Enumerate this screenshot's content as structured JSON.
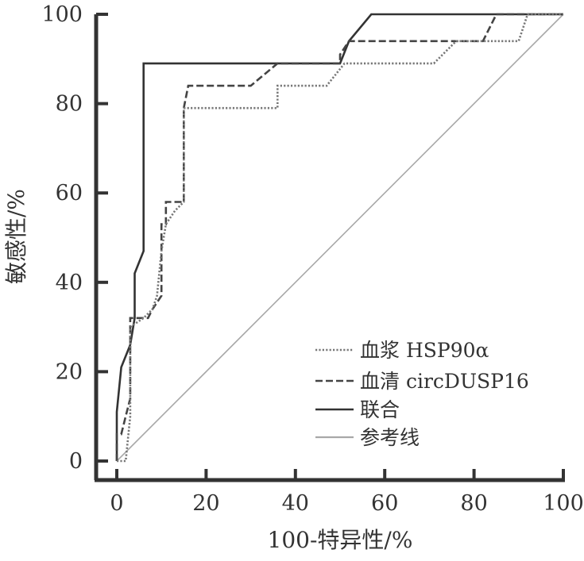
{
  "chart_data": {
    "type": "line",
    "title": "",
    "xlabel": "100-特异性/%",
    "ylabel": "敏感性/%",
    "xlim": [
      0,
      100
    ],
    "ylim": [
      0,
      100
    ],
    "x_ticks": [
      "0",
      "20",
      "40",
      "60",
      "80",
      "100"
    ],
    "y_ticks": [
      "0",
      "20",
      "40",
      "60",
      "80",
      "100"
    ],
    "grid": false,
    "legend_position": "lower-right",
    "series": [
      {
        "name": "血浆 HSP90α",
        "style": "dotted",
        "color": "#777777",
        "points": [
          [
            0,
            0
          ],
          [
            1,
            0
          ],
          [
            2,
            0
          ],
          [
            3,
            10
          ],
          [
            3,
            30
          ],
          [
            6,
            32
          ],
          [
            8,
            34
          ],
          [
            9,
            37
          ],
          [
            10,
            47
          ],
          [
            11,
            53
          ],
          [
            13,
            56
          ],
          [
            15,
            58
          ],
          [
            15,
            79
          ],
          [
            36,
            79
          ],
          [
            36,
            84
          ],
          [
            47,
            84
          ],
          [
            51,
            89
          ],
          [
            71,
            89
          ],
          [
            76,
            94
          ],
          [
            90,
            94
          ],
          [
            92,
            100
          ],
          [
            100,
            100
          ]
        ]
      },
      {
        "name": "血清 circDUSP16",
        "style": "dashed",
        "color": "#444444",
        "points": [
          [
            0,
            0
          ],
          [
            0,
            6
          ],
          [
            1,
            6
          ],
          [
            2,
            10
          ],
          [
            3,
            14
          ],
          [
            3,
            32
          ],
          [
            5,
            32
          ],
          [
            7,
            32
          ],
          [
            8,
            34
          ],
          [
            10,
            37
          ],
          [
            10,
            53
          ],
          [
            11,
            53
          ],
          [
            11,
            58
          ],
          [
            15,
            58
          ],
          [
            15,
            79
          ],
          [
            16,
            84
          ],
          [
            30,
            84
          ],
          [
            36,
            89
          ],
          [
            50,
            89
          ],
          [
            50,
            91
          ],
          [
            52,
            94
          ],
          [
            82,
            94
          ],
          [
            85,
            100
          ],
          [
            100,
            100
          ]
        ]
      },
      {
        "name": "联合",
        "style": "solid",
        "color": "#333333",
        "points": [
          [
            0,
            0
          ],
          [
            0,
            11
          ],
          [
            1,
            21
          ],
          [
            3,
            26
          ],
          [
            4,
            32
          ],
          [
            4,
            42
          ],
          [
            6,
            47
          ],
          [
            6,
            89
          ],
          [
            50,
            89
          ],
          [
            52,
            94
          ],
          [
            57,
            100
          ],
          [
            100,
            100
          ]
        ]
      },
      {
        "name": "参考线",
        "style": "solid",
        "color": "#a8a8a8",
        "points": [
          [
            0,
            0
          ],
          [
            100,
            100
          ]
        ]
      }
    ]
  }
}
